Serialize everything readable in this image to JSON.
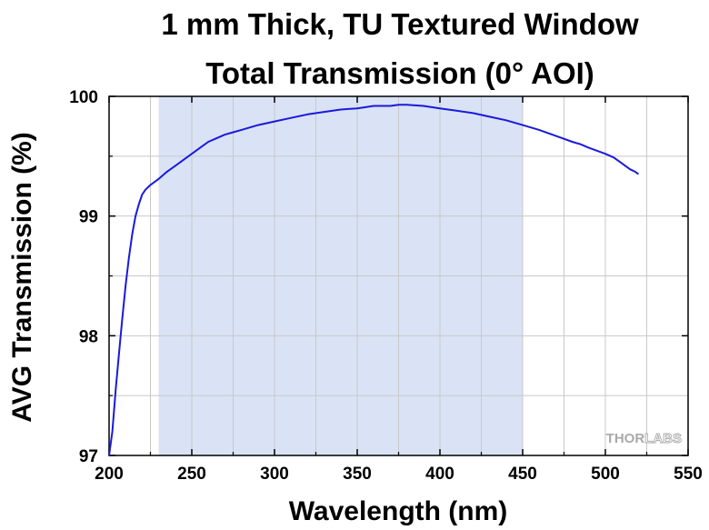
{
  "chart_data": {
    "type": "line",
    "title_lines": [
      "1 mm Thick, TU Textured Window",
      "Total Transmission (0° AOI)"
    ],
    "xlabel": "Wavelength (nm)",
    "ylabel": "AVG Transmission (%)",
    "xlim": [
      200,
      550
    ],
    "ylim": [
      97,
      100
    ],
    "x_ticks": [
      200,
      250,
      300,
      350,
      400,
      450,
      500,
      550
    ],
    "y_ticks": [
      97,
      98,
      99,
      100
    ],
    "grid": true,
    "highlight_band": {
      "x": [
        230,
        450
      ],
      "color": "#dae3f5"
    },
    "series": [
      {
        "color": "#1a1adc",
        "points": [
          [
            200,
            97.0
          ],
          [
            202,
            97.2
          ],
          [
            204,
            97.55
          ],
          [
            206,
            97.85
          ],
          [
            208,
            98.15
          ],
          [
            210,
            98.42
          ],
          [
            212,
            98.65
          ],
          [
            214,
            98.85
          ],
          [
            216,
            99.0
          ],
          [
            218,
            99.1
          ],
          [
            220,
            99.18
          ],
          [
            222,
            99.22
          ],
          [
            225,
            99.26
          ],
          [
            230,
            99.31
          ],
          [
            235,
            99.37
          ],
          [
            240,
            99.42
          ],
          [
            245,
            99.47
          ],
          [
            250,
            99.52
          ],
          [
            255,
            99.57
          ],
          [
            260,
            99.62
          ],
          [
            265,
            99.65
          ],
          [
            270,
            99.68
          ],
          [
            275,
            99.7
          ],
          [
            280,
            99.72
          ],
          [
            290,
            99.76
          ],
          [
            300,
            99.79
          ],
          [
            310,
            99.82
          ],
          [
            320,
            99.85
          ],
          [
            330,
            99.87
          ],
          [
            340,
            99.89
          ],
          [
            350,
            99.9
          ],
          [
            360,
            99.92
          ],
          [
            370,
            99.92
          ],
          [
            375,
            99.93
          ],
          [
            380,
            99.93
          ],
          [
            390,
            99.92
          ],
          [
            400,
            99.9
          ],
          [
            410,
            99.88
          ],
          [
            420,
            99.86
          ],
          [
            430,
            99.83
          ],
          [
            440,
            99.8
          ],
          [
            450,
            99.76
          ],
          [
            460,
            99.72
          ],
          [
            470,
            99.67
          ],
          [
            480,
            99.62
          ],
          [
            485,
            99.6
          ],
          [
            490,
            99.57
          ],
          [
            500,
            99.52
          ],
          [
            505,
            99.49
          ],
          [
            510,
            99.44
          ],
          [
            515,
            99.39
          ],
          [
            518,
            99.37
          ],
          [
            520,
            99.35
          ]
        ]
      }
    ]
  },
  "watermark": {
    "part1": "THOR",
    "part2": "LABS"
  },
  "colors": {
    "plot_background": "#ffffff",
    "grid": "#c8c8c8",
    "axes": "#000000"
  }
}
